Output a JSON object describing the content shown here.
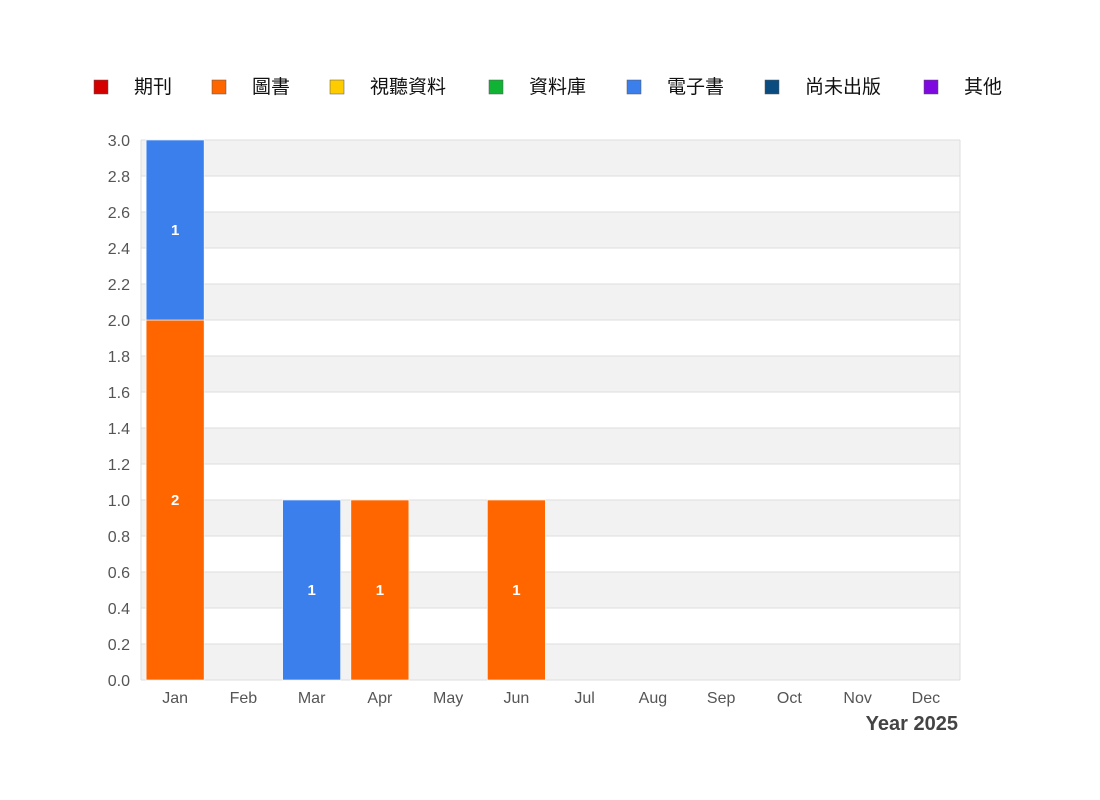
{
  "chart_data": {
    "type": "bar",
    "stacked": true,
    "xlabel": "Year 2025",
    "ylabel": "",
    "ylim": [
      0,
      3.0
    ],
    "ytick_step": 0.2,
    "grid": "alternating horizontal bands",
    "legend_position": "top",
    "categories": [
      "Jan",
      "Feb",
      "Mar",
      "Apr",
      "May",
      "Jun",
      "Jul",
      "Aug",
      "Sep",
      "Oct",
      "Nov",
      "Dec"
    ],
    "series": [
      {
        "name": "期刊",
        "color": "#d40000",
        "values": [
          0,
          0,
          0,
          0,
          0,
          0,
          0,
          0,
          0,
          0,
          0,
          0
        ]
      },
      {
        "name": "圖書",
        "color": "#ff6600",
        "values": [
          2,
          0,
          0,
          1,
          0,
          1,
          0,
          0,
          0,
          0,
          0,
          0
        ]
      },
      {
        "name": "視聽資料",
        "color": "#ffcc00",
        "values": [
          0,
          0,
          0,
          0,
          0,
          0,
          0,
          0,
          0,
          0,
          0,
          0
        ]
      },
      {
        "name": "資料庫",
        "color": "#11b335",
        "values": [
          0,
          0,
          0,
          0,
          0,
          0,
          0,
          0,
          0,
          0,
          0,
          0
        ]
      },
      {
        "name": "電子書",
        "color": "#3b7fed",
        "values": [
          1,
          0,
          1,
          0,
          0,
          0,
          0,
          0,
          0,
          0,
          0,
          0
        ]
      },
      {
        "name": "尚未出版",
        "color": "#0b4c80",
        "values": [
          0,
          0,
          0,
          0,
          0,
          0,
          0,
          0,
          0,
          0,
          0,
          0
        ]
      },
      {
        "name": "其他",
        "color": "#7f0adf",
        "values": [
          0,
          0,
          0,
          0,
          0,
          0,
          0,
          0,
          0,
          0,
          0,
          0
        ]
      }
    ]
  }
}
